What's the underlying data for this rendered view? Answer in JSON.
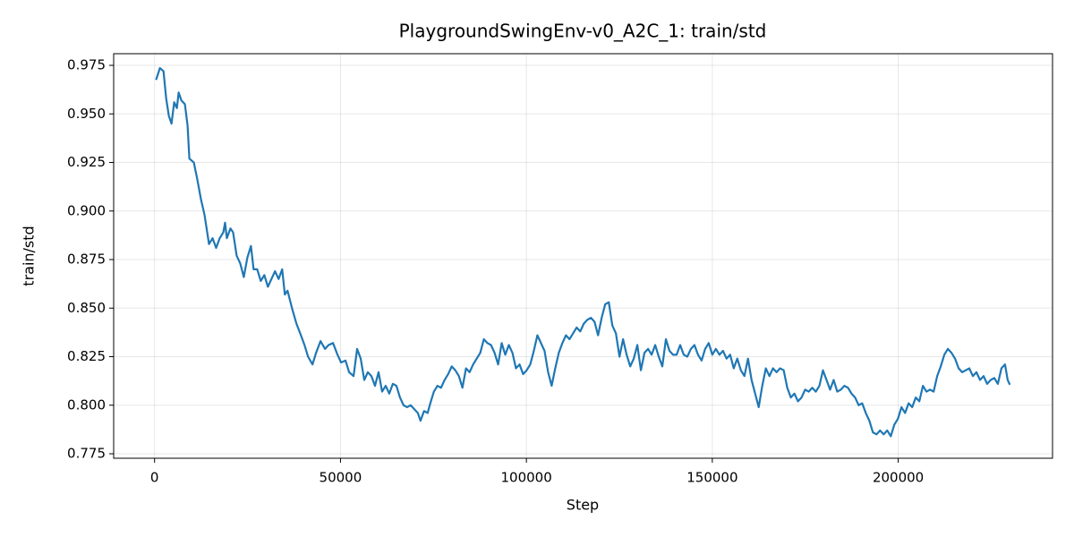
{
  "chart_data": {
    "type": "line",
    "title": "PlaygroundSwingEnv-v0_A2C_1: train/std",
    "x_label": "Step",
    "y_label": "train/std",
    "grid": true,
    "xlim": [
      -11000,
      241500
    ],
    "ylim": [
      0.7727,
      0.981
    ],
    "xticks": [
      0,
      50000,
      100000,
      150000,
      200000
    ],
    "yticks": [
      0.775,
      {
        "value": 0.8,
        "label": "0.800"
      },
      0.825,
      {
        "value": 0.85,
        "label": "0.850"
      },
      0.875,
      {
        "value": 0.9,
        "label": "0.900"
      },
      0.925,
      {
        "value": 0.95,
        "label": "0.950"
      },
      0.975
    ],
    "x": [
      480,
      1440,
      2400,
      3120,
      3840,
      4560,
      5280,
      6000,
      6480,
      7200,
      8160,
      8880,
      9360,
      10560,
      11520,
      12480,
      13440,
      14640,
      15600,
      16560,
      17520,
      18480,
      18960,
      19440,
      20400,
      21120,
      22080,
      23040,
      24000,
      24960,
      25920,
      26640,
      27600,
      28560,
      29520,
      30480,
      31440,
      32400,
      33360,
      34320,
      35040,
      35760,
      36960,
      38160,
      39360,
      40320,
      41280,
      42480,
      43440,
      44640,
      45840,
      46800,
      48000,
      49200,
      50160,
      51360,
      52320,
      53520,
      54480,
      55440,
      56400,
      57360,
      58320,
      59280,
      60240,
      61200,
      62160,
      63120,
      64080,
      65040,
      66000,
      66960,
      67920,
      68880,
      69840,
      70800,
      71520,
      72480,
      73440,
      74160,
      75120,
      76080,
      77040,
      78000,
      78960,
      79920,
      80880,
      81840,
      82800,
      83760,
      84720,
      85680,
      86640,
      87600,
      88560,
      89520,
      90480,
      91440,
      92400,
      93360,
      94320,
      95280,
      96240,
      97200,
      98160,
      99120,
      100080,
      101040,
      102000,
      102960,
      103920,
      104880,
      105840,
      106800,
      107760,
      108720,
      109680,
      110640,
      111600,
      112560,
      113520,
      114480,
      115440,
      116400,
      117360,
      118320,
      119280,
      120240,
      121200,
      122160,
      123120,
      124080,
      125040,
      126000,
      126960,
      127920,
      128880,
      129840,
      130800,
      131760,
      132720,
      133680,
      134640,
      135600,
      136560,
      137520,
      138480,
      139440,
      140400,
      141360,
      142320,
      143280,
      144240,
      145200,
      146160,
      147120,
      148080,
      149040,
      150000,
      150960,
      151920,
      152880,
      153840,
      154800,
      155760,
      156720,
      157680,
      158640,
      159600,
      160560,
      161520,
      162480,
      163440,
      164400,
      165360,
      166320,
      167280,
      168240,
      169200,
      170160,
      171120,
      172080,
      173040,
      174000,
      174960,
      175920,
      176880,
      177840,
      178800,
      179760,
      180720,
      181680,
      182640,
      183600,
      184560,
      185520,
      186480,
      187440,
      188400,
      189360,
      190320,
      191280,
      192240,
      193200,
      194160,
      195120,
      196080,
      197040,
      198000,
      198960,
      199920,
      200880,
      201840,
      202800,
      203760,
      204720,
      205680,
      206640,
      207600,
      208560,
      209520,
      210480,
      211440,
      212400,
      213360,
      214320,
      215280,
      216240,
      217200,
      218160,
      219120,
      220080,
      221040,
      222000,
      222960,
      223920,
      224880,
      225840,
      226800,
      227760,
      228720,
      229440,
      229920
    ],
    "series": [
      {
        "color": "#1f77b4",
        "values": [
          0.968,
          0.9736,
          0.972,
          0.958,
          0.949,
          0.945,
          0.956,
          0.953,
          0.961,
          0.957,
          0.955,
          0.944,
          0.927,
          0.925,
          0.916,
          0.906,
          0.898,
          0.883,
          0.886,
          0.881,
          0.886,
          0.889,
          0.894,
          0.886,
          0.891,
          0.889,
          0.877,
          0.873,
          0.866,
          0.876,
          0.882,
          0.87,
          0.87,
          0.864,
          0.867,
          0.861,
          0.865,
          0.869,
          0.865,
          0.87,
          0.857,
          0.859,
          0.85,
          0.842,
          0.836,
          0.831,
          0.825,
          0.821,
          0.827,
          0.833,
          0.829,
          0.831,
          0.832,
          0.826,
          0.822,
          0.823,
          0.817,
          0.815,
          0.829,
          0.824,
          0.813,
          0.817,
          0.815,
          0.81,
          0.817,
          0.807,
          0.81,
          0.806,
          0.811,
          0.81,
          0.804,
          0.8,
          0.799,
          0.8,
          0.798,
          0.796,
          0.792,
          0.797,
          0.796,
          0.801,
          0.807,
          0.81,
          0.809,
          0.813,
          0.816,
          0.82,
          0.818,
          0.815,
          0.809,
          0.819,
          0.817,
          0.821,
          0.824,
          0.827,
          0.834,
          0.832,
          0.831,
          0.827,
          0.821,
          0.832,
          0.826,
          0.831,
          0.827,
          0.819,
          0.821,
          0.816,
          0.818,
          0.821,
          0.828,
          0.836,
          0.832,
          0.828,
          0.817,
          0.81,
          0.819,
          0.827,
          0.832,
          0.836,
          0.834,
          0.837,
          0.84,
          0.838,
          0.842,
          0.844,
          0.845,
          0.843,
          0.836,
          0.845,
          0.852,
          0.853,
          0.841,
          0.837,
          0.825,
          0.834,
          0.826,
          0.82,
          0.824,
          0.831,
          0.818,
          0.827,
          0.829,
          0.826,
          0.831,
          0.825,
          0.82,
          0.834,
          0.828,
          0.826,
          0.826,
          0.831,
          0.826,
          0.825,
          0.829,
          0.831,
          0.826,
          0.823,
          0.829,
          0.832,
          0.826,
          0.829,
          0.826,
          0.828,
          0.824,
          0.826,
          0.819,
          0.824,
          0.818,
          0.815,
          0.824,
          0.813,
          0.806,
          0.799,
          0.81,
          0.819,
          0.815,
          0.819,
          0.817,
          0.819,
          0.818,
          0.809,
          0.804,
          0.806,
          0.802,
          0.804,
          0.808,
          0.807,
          0.809,
          0.807,
          0.81,
          0.818,
          0.813,
          0.808,
          0.813,
          0.807,
          0.808,
          0.81,
          0.809,
          0.806,
          0.804,
          0.8,
          0.801,
          0.796,
          0.792,
          0.786,
          0.785,
          0.787,
          0.785,
          0.787,
          0.784,
          0.79,
          0.793,
          0.799,
          0.796,
          0.801,
          0.799,
          0.804,
          0.802,
          0.81,
          0.807,
          0.808,
          0.807,
          0.815,
          0.82,
          0.826,
          0.829,
          0.827,
          0.824,
          0.819,
          0.817,
          0.818,
          0.819,
          0.815,
          0.817,
          0.813,
          0.815,
          0.811,
          0.813,
          0.814,
          0.811,
          0.819,
          0.821,
          0.813,
          0.811
        ]
      }
    ]
  }
}
